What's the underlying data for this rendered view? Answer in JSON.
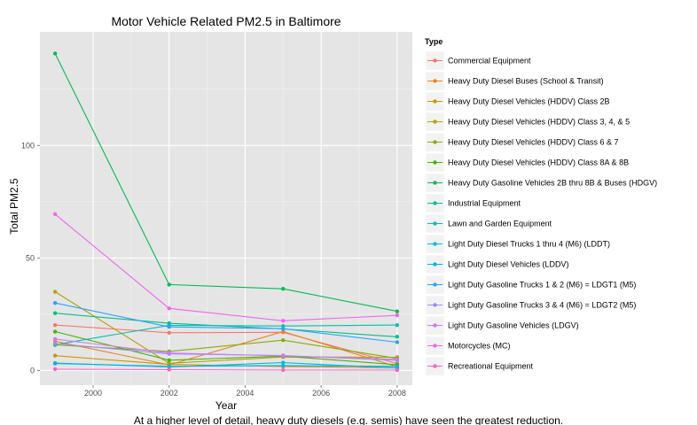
{
  "chart_data": {
    "type": "line",
    "title": "Motor Vehicle Related PM2.5 in Baltimore",
    "xlabel": "Year",
    "ylabel": "Total PM2.5",
    "x": [
      1999,
      2002,
      2005,
      2008
    ],
    "x_ticks": [
      2000,
      2002,
      2004,
      2006,
      2008
    ],
    "y_ticks": [
      0,
      50,
      100
    ],
    "xlim": [
      1998.6,
      2008.4
    ],
    "ylim": [
      -6.5,
      150.5
    ],
    "grid": true,
    "background": "#e5e5e5",
    "legend_position": "right",
    "legend_title": "Type",
    "caption": "At a higher level of detail, heavy duty diesels (e.g. semis) have seen the greatest reduction.",
    "series": [
      {
        "name": "Commercial Equipment",
        "color": "#F8766D",
        "values": [
          20.2,
          16.8,
          17.0,
          3.1
        ]
      },
      {
        "name": "Heavy Duty Diesel Buses (School & Transit)",
        "color": "#E7851E",
        "values": [
          13.0,
          2.5,
          17.3,
          1.7
        ]
      },
      {
        "name": "Heavy Duty Diesel Vehicles (HDDV) Class 2B",
        "color": "#D09400",
        "values": [
          6.6,
          2.7,
          1.8,
          1.2
        ]
      },
      {
        "name": "Heavy Duty Diesel Vehicles (HDDV) Class 3, 4, & 5",
        "color": "#B2A100",
        "values": [
          35.0,
          3.2,
          6.0,
          5.9
        ]
      },
      {
        "name": "Heavy Duty Diesel Vehicles (HDDV) Class 6 & 7",
        "color": "#89AC00",
        "values": [
          11.4,
          8.5,
          13.5,
          5.4
        ]
      },
      {
        "name": "Heavy Duty Diesel Vehicles (HDDV) Class 8A & 8B",
        "color": "#45B500",
        "values": [
          17.3,
          4.6,
          6.4,
          2.6
        ]
      },
      {
        "name": "Heavy Duty Gasoline Vehicles 2B thru 8B & Buses (HDGV)",
        "color": "#00BC51",
        "values": [
          140.9,
          38.2,
          36.3,
          26.3
        ]
      },
      {
        "name": "Industrial Equipment",
        "color": "#00C087",
        "values": [
          25.5,
          21.0,
          18.5,
          15.0
        ]
      },
      {
        "name": "Lawn and Garden Equipment",
        "color": "#00C0B2",
        "values": [
          11.5,
          20.1,
          19.8,
          20.2
        ]
      },
      {
        "name": "Light Duty Diesel Trucks 1 thru 4 (M6) (LDDT)",
        "color": "#00BCD6",
        "values": [
          3.3,
          1.6,
          3.5,
          1.1
        ]
      },
      {
        "name": "Light Duty Diesel Vehicles (LDDV)",
        "color": "#00B3F2",
        "values": [
          3.1,
          1.9,
          2.2,
          1.9
        ]
      },
      {
        "name": "Light Duty Gasoline Trucks 1 & 2 (M6) = LDGT1 (M5)",
        "color": "#29A3FF",
        "values": [
          30.0,
          19.4,
          18.6,
          12.6
        ]
      },
      {
        "name": "Light Duty Gasoline Trucks 3 & 4 (M6) = LDGT2 (M5)",
        "color": "#9C8DFF",
        "values": [
          12.0,
          7.4,
          6.7,
          4.5
        ]
      },
      {
        "name": "Light Duty Gasoline Vehicles (LDGV)",
        "color": "#D277FF",
        "values": [
          14.0,
          7.8,
          6.5,
          5.0
        ]
      },
      {
        "name": "Motorcycles (MC)",
        "color": "#F166E8",
        "values": [
          69.5,
          27.6,
          22.1,
          24.5
        ]
      },
      {
        "name": "Recreational Equipment",
        "color": "#FF61C7",
        "values": [
          0.6,
          0.4,
          0.2,
          0.2
        ]
      }
    ]
  }
}
